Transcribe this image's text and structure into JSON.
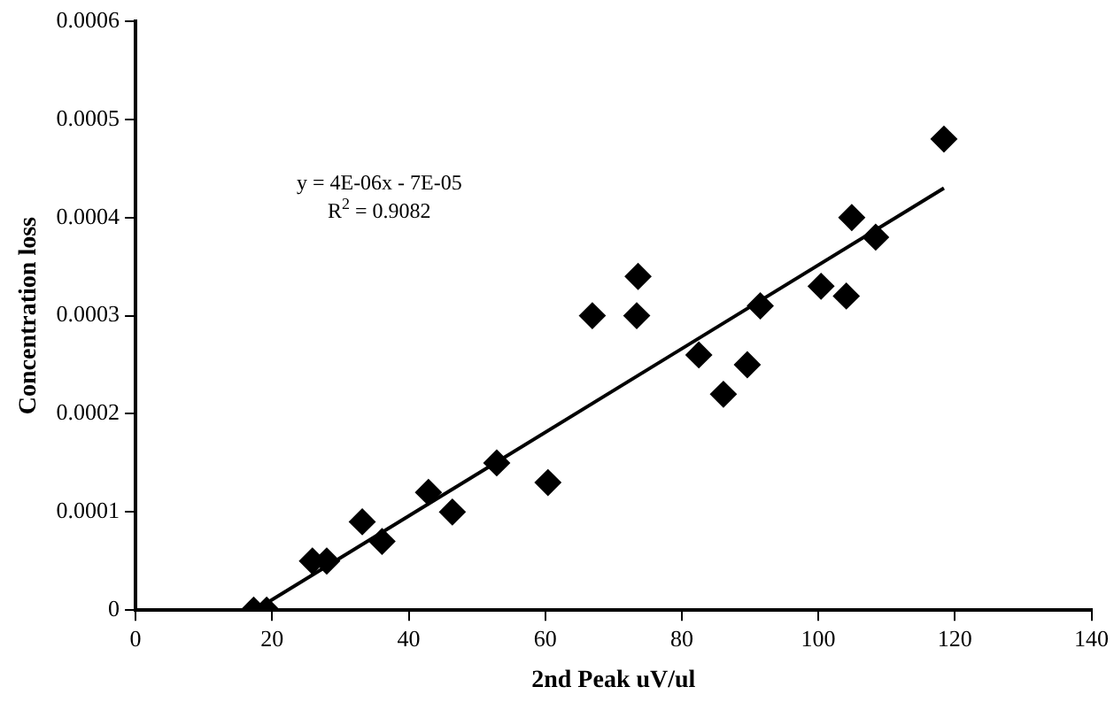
{
  "chart_data": {
    "type": "scatter",
    "xlabel": "2nd Peak uV/ul",
    "ylabel": "Concentration loss",
    "xlim": [
      0,
      140
    ],
    "xticks": [
      0,
      20,
      40,
      60,
      80,
      100,
      120,
      140
    ],
    "ylim": [
      0,
      0.0006
    ],
    "yticks": [
      0,
      0.0001,
      0.0002,
      0.0003,
      0.0004,
      0.0005,
      0.0006
    ],
    "grid": false,
    "legend": false,
    "marker": "diamond",
    "annotations": [
      "y = 4E-06x - 7E-05",
      "R$^{2}$ = 0.9082"
    ],
    "series": [
      {
        "color": "#000000",
        "x": [
          17.3,
          19.2,
          25.9,
          28.0,
          33.2,
          36.1,
          42.9,
          46.4,
          52.9,
          60.4,
          66.9,
          73.4,
          73.6,
          82.5,
          86.1,
          89.6,
          91.5,
          100.4,
          104.1,
          104.9,
          108.4,
          118.4
        ],
        "values": [
          0,
          0,
          5e-05,
          5e-05,
          9e-05,
          7e-05,
          0.00012,
          0.0001,
          0.00015,
          0.00013,
          0.0003,
          0.0003,
          0.00034,
          0.00026,
          0.00022,
          0.00025,
          0.00031,
          0.00033,
          0.00032,
          0.0004,
          0.00038,
          0.00048
        ]
      },
      {
        "type": "line",
        "color": "#000000",
        "marker": "none",
        "line_style": "solid",
        "x": [
          17.5,
          118.4
        ],
        "values": [
          0,
          0.00043
        ]
      }
    ]
  }
}
